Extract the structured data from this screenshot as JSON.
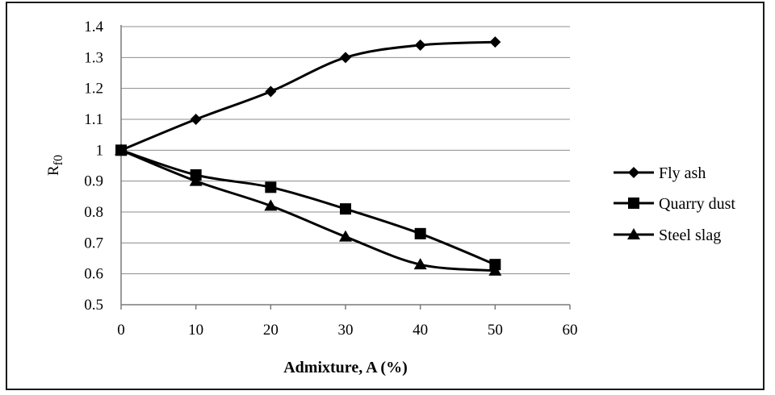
{
  "chart_data": {
    "type": "line",
    "xlabel": "Admixture, A (%)",
    "ylabel": "R",
    "ylabel_sub": "f0",
    "xlim": [
      0,
      60
    ],
    "ylim": [
      0.5,
      1.4
    ],
    "x_ticks": [
      0,
      10,
      20,
      30,
      40,
      50,
      60
    ],
    "y_ticks": [
      0.5,
      0.6,
      0.7,
      0.8,
      0.9,
      1,
      1.1,
      1.2,
      1.3,
      1.4
    ],
    "grid": "horizontal",
    "legend_position": "right",
    "smooth": true,
    "line_color": "#000000",
    "series": [
      {
        "name": "Fly ash",
        "marker": "diamond",
        "x": [
          0,
          10,
          20,
          30,
          40,
          50
        ],
        "y": [
          1.0,
          1.1,
          1.19,
          1.3,
          1.34,
          1.35
        ]
      },
      {
        "name": "Quarry dust",
        "marker": "square",
        "x": [
          0,
          10,
          20,
          30,
          40,
          50
        ],
        "y": [
          1.0,
          0.92,
          0.88,
          0.81,
          0.73,
          0.63
        ]
      },
      {
        "name": "Steel slag",
        "marker": "triangle",
        "x": [
          0,
          10,
          20,
          30,
          40,
          50
        ],
        "y": [
          1.0,
          0.9,
          0.82,
          0.72,
          0.63,
          0.61
        ]
      }
    ]
  }
}
